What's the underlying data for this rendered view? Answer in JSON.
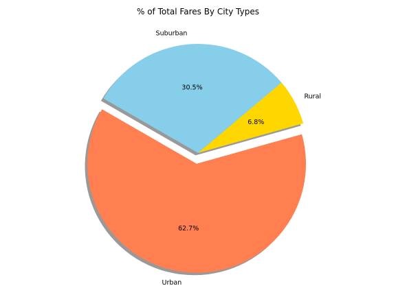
{
  "chart_data": {
    "type": "pie",
    "title": "% of Total Fares By City Types",
    "slices": [
      {
        "label": "Urban",
        "value": 62.7,
        "pct_label": "62.7%",
        "color": "#FF7F50",
        "exploded": true
      },
      {
        "label": "Rural",
        "value": 6.8,
        "pct_label": "6.8%",
        "color": "#FFD700",
        "exploded": false
      },
      {
        "label": "Suburban",
        "value": 30.5,
        "pct_label": "30.5%",
        "color": "#87CEEB",
        "exploded": false
      }
    ],
    "shadow": true,
    "legend": "none"
  }
}
